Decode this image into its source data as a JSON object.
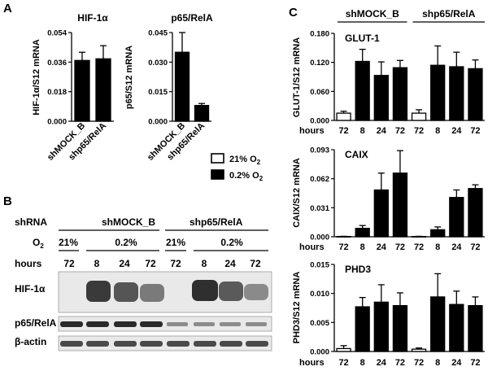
{
  "panels": {
    "a": "A",
    "b": "B",
    "c": "C"
  },
  "legend": {
    "normoxia_label": "21% O",
    "normoxia_sub": "2",
    "hypoxia_label": "0.2% O",
    "hypoxia_sub": "2",
    "normoxia_color": "#ffffff",
    "hypoxia_color": "#000000"
  },
  "blot": {
    "shrna_label": "shRNA",
    "group1": "shMOCK_B",
    "group2": "shp65/RelA",
    "o2_label": "O",
    "o2_sub": "2",
    "o2_levels": [
      "21%",
      "0.2%",
      "21%",
      "0.2%"
    ],
    "hours_label": "hours",
    "hours": [
      "72",
      "8",
      "24",
      "72",
      "72",
      "8",
      "24",
      "72"
    ],
    "rows": [
      "HIF-1α",
      "p65/RelA",
      "β-actin"
    ]
  },
  "chart_data": [
    {
      "id": "A1",
      "type": "bar",
      "title": "HIF-1α",
      "ylabel": "HIF-1α/S12 mRNA",
      "categories": [
        "shMOCK_B",
        "shp65/RelA"
      ],
      "values": [
        0.037,
        0.038
      ],
      "errors": [
        0.005,
        0.008
      ],
      "ylim": [
        0,
        0.054
      ],
      "yticks": [
        "0.054",
        "0.036",
        "0.018",
        "0.000"
      ]
    },
    {
      "id": "A2",
      "type": "bar",
      "title": "p65/RelA",
      "ylabel": "p65/S12 mRNA",
      "categories": [
        "shMOCK_B",
        "shp65/RelA"
      ],
      "values": [
        0.035,
        0.008
      ],
      "errors": [
        0.01,
        0.001
      ],
      "ylim": [
        0,
        0.045
      ],
      "yticks": [
        "0.045",
        "0.030",
        "0.015",
        "0.000"
      ]
    },
    {
      "id": "C1",
      "type": "bar",
      "title": "GLUT-1",
      "ylabel": "GLUT-1/S12 mRNA",
      "groups": [
        "shMOCK_B",
        "shp65/RelA"
      ],
      "xlabel": "hours",
      "categories": [
        "72",
        "8",
        "24",
        "72",
        "72",
        "8",
        "24",
        "72"
      ],
      "conditions": [
        "21% O2",
        "0.2% O2",
        "0.2% O2",
        "0.2% O2",
        "21% O2",
        "0.2% O2",
        "0.2% O2",
        "0.2% O2"
      ],
      "values": [
        0.015,
        0.122,
        0.093,
        0.109,
        0.015,
        0.114,
        0.111,
        0.107
      ],
      "errors": [
        0.004,
        0.025,
        0.028,
        0.015,
        0.007,
        0.04,
        0.03,
        0.018
      ],
      "ylim": [
        0,
        0.18
      ],
      "yticks": [
        "0.180",
        "0.120",
        "0.060",
        "0.000"
      ]
    },
    {
      "id": "C2",
      "type": "bar",
      "title": "CAIX",
      "ylabel": "CAIX/S12 mRNA",
      "xlabel": "hours",
      "categories": [
        "72",
        "8",
        "24",
        "72",
        "72",
        "8",
        "24",
        "72"
      ],
      "conditions": [
        "21% O2",
        "0.2% O2",
        "0.2% O2",
        "0.2% O2",
        "21% O2",
        "0.2% O2",
        "0.2% O2",
        "0.2% O2"
      ],
      "values": [
        0.0003,
        0.009,
        0.05,
        0.068,
        0.0003,
        0.0075,
        0.042,
        0.0515
      ],
      "errors": [
        0.0002,
        0.003,
        0.018,
        0.024,
        0.0002,
        0.003,
        0.008,
        0.004
      ],
      "ylim": [
        0,
        0.093
      ],
      "yticks": [
        "0.093",
        "0.062",
        "0.031",
        "0.000"
      ]
    },
    {
      "id": "C3",
      "type": "bar",
      "title": "PHD3",
      "ylabel": "PHD3/S12 mRNA",
      "xlabel": "hours",
      "categories": [
        "72",
        "8",
        "24",
        "72",
        "72",
        "8",
        "24",
        "72"
      ],
      "conditions": [
        "21% O2",
        "0.2% O2",
        "0.2% O2",
        "0.2% O2",
        "21% O2",
        "0.2% O2",
        "0.2% O2",
        "0.2% O2"
      ],
      "values": [
        0.0005,
        0.0077,
        0.0085,
        0.0079,
        0.0004,
        0.0094,
        0.0081,
        0.0079
      ],
      "errors": [
        0.0005,
        0.0016,
        0.003,
        0.0022,
        0.0002,
        0.004,
        0.0023,
        0.0015
      ],
      "ylim": [
        0,
        0.015
      ],
      "yticks": [
        "0.015",
        "0.010",
        "0.005",
        "0.000"
      ]
    }
  ]
}
